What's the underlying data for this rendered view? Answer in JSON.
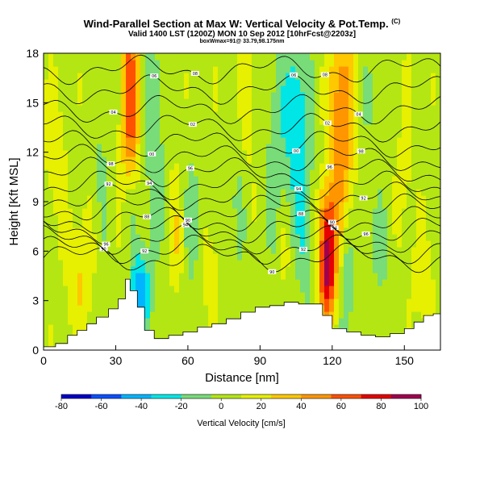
{
  "header": {
    "title": "Wind-Parallel Section at Max W: Vertical Velocity & Pot.Temp.",
    "title_mark": "(C)",
    "subtitle": "Valid 1400 LST (1200Z) MON 10 Sep 2012 [10hrFcst@2203z]",
    "info": "boxWmax=91@ 33.79,98.175nm"
  },
  "chart_data": {
    "type": "heatmap",
    "title": "Wind-Parallel Section at Max W: Vertical Velocity & Pot.Temp.",
    "xlabel": "Distance [nm]",
    "ylabel": "Height [Kft MSL]",
    "xlim": [
      0,
      165
    ],
    "ylim": [
      0,
      18
    ],
    "x_ticks": [
      0,
      30,
      60,
      90,
      120,
      150
    ],
    "y_ticks": [
      0,
      3,
      6,
      9,
      12,
      15,
      18
    ],
    "grid": false,
    "colorbar": {
      "title": "Vertical Velocity [cm/s]",
      "ticks": [
        -80,
        -60,
        -40,
        -20,
        0,
        20,
        40,
        60,
        80,
        100
      ],
      "range": [
        -80,
        100
      ],
      "colors": [
        "#0000c8",
        "#0a50ff",
        "#00b4ff",
        "#00e6e6",
        "#78dc78",
        "#b4e614",
        "#e6f000",
        "#ffc800",
        "#ff9600",
        "#ff5000",
        "#e60000",
        "#a00050"
      ]
    },
    "background_level": 5,
    "velocity_features": [
      {
        "x": 15,
        "y": 4.5,
        "w": 22,
        "sx": 3.5,
        "sy": 2.5
      },
      {
        "x": 36,
        "y": 15,
        "w": 62,
        "sx": 2.5,
        "sy": 4.5
      },
      {
        "x": 36,
        "y": 9,
        "w": -25,
        "sx": 2.2,
        "sy": 2
      },
      {
        "x": 40,
        "y": 3.5,
        "w": -55,
        "sx": 2.8,
        "sy": 1.8
      },
      {
        "x": 46,
        "y": 13,
        "w": -22,
        "sx": 3,
        "sy": 5
      },
      {
        "x": 55,
        "y": 7,
        "w": 18,
        "sx": 2,
        "sy": 2.5
      },
      {
        "x": 62,
        "y": 8,
        "w": -20,
        "sx": 2,
        "sy": 3
      },
      {
        "x": 70,
        "y": 4,
        "w": 20,
        "sx": 2,
        "sy": 2
      },
      {
        "x": 80,
        "y": 9,
        "w": -12,
        "sx": 3,
        "sy": 4
      },
      {
        "x": 85,
        "y": 15,
        "w": 14,
        "sx": 3,
        "sy": 3
      },
      {
        "x": 96,
        "y": 12,
        "w": -16,
        "sx": 3,
        "sy": 5
      },
      {
        "x": 105,
        "y": 14,
        "w": -38,
        "sx": 4,
        "sy": 4
      },
      {
        "x": 109,
        "y": 7,
        "w": -22,
        "sx": 3,
        "sy": 3
      },
      {
        "x": 118,
        "y": 5,
        "w": 90,
        "sx": 2.6,
        "sy": 2.2
      },
      {
        "x": 118,
        "y": 8.5,
        "w": 30,
        "sx": 3,
        "sy": 1.5
      },
      {
        "x": 124,
        "y": 14,
        "w": 52,
        "sx": 3.5,
        "sy": 4.5
      },
      {
        "x": 126,
        "y": 4,
        "w": -25,
        "sx": 2,
        "sy": 3
      },
      {
        "x": 140,
        "y": 6,
        "w": -12,
        "sx": 4,
        "sy": 3
      },
      {
        "x": 135,
        "y": 15,
        "w": -8,
        "sx": 4,
        "sy": 3
      },
      {
        "x": 5,
        "y": 12,
        "w": 15,
        "sx": 3,
        "sy": 3
      },
      {
        "x": 24,
        "y": 11,
        "w": -12,
        "sx": 2,
        "sy": 4
      },
      {
        "x": 100,
        "y": 6,
        "w": 12,
        "sx": 2,
        "sy": 2
      },
      {
        "x": 150,
        "y": 10,
        "w": 10,
        "sx": 3,
        "sy": 4
      },
      {
        "x": 158,
        "y": 4,
        "w": 14,
        "sx": 3,
        "sy": 2
      }
    ],
    "terrain": [
      [
        0,
        0.2
      ],
      [
        5,
        0.4
      ],
      [
        10,
        0.9
      ],
      [
        14,
        1.2
      ],
      [
        18,
        1.6
      ],
      [
        22,
        2.0
      ],
      [
        27,
        2.5
      ],
      [
        31,
        3.1
      ],
      [
        34,
        4.3
      ],
      [
        36,
        3.6
      ],
      [
        39,
        2.6
      ],
      [
        42,
        1.2
      ],
      [
        46,
        0.7
      ],
      [
        52,
        0.9
      ],
      [
        58,
        1.1
      ],
      [
        64,
        1.4
      ],
      [
        70,
        1.6
      ],
      [
        76,
        1.9
      ],
      [
        82,
        2.3
      ],
      [
        88,
        2.6
      ],
      [
        94,
        2.7
      ],
      [
        100,
        2.9
      ],
      [
        106,
        2.8
      ],
      [
        112,
        2.8
      ],
      [
        116,
        2.1
      ],
      [
        120,
        1.3
      ],
      [
        126,
        1.1
      ],
      [
        132,
        0.9
      ],
      [
        138,
        0.8
      ],
      [
        144,
        1.0
      ],
      [
        150,
        1.3
      ],
      [
        154,
        1.7
      ],
      [
        158,
        2.1
      ],
      [
        162,
        2.2
      ],
      [
        165,
        2.3
      ]
    ],
    "theta_contours": [
      {
        "base": 5.6,
        "label": "90"
      },
      {
        "base": 6.1,
        "label": "92"
      },
      {
        "base": 6.7,
        "label": "94"
      },
      {
        "base": 7.3,
        "label": "96"
      },
      {
        "base": 7.9,
        "label": "88"
      },
      {
        "base": 8.6,
        "label": "90"
      },
      {
        "base": 9.3,
        "label": "92"
      },
      {
        "base": 10.0,
        "label": "94"
      },
      {
        "base": 10.8,
        "label": "96"
      },
      {
        "base": 11.6,
        "label": "98"
      },
      {
        "base": 12.5,
        "label": "00"
      },
      {
        "base": 13.5,
        "label": "02"
      },
      {
        "base": 14.6,
        "label": "04"
      },
      {
        "base": 15.8,
        "label": "06"
      },
      {
        "base": 17.0,
        "label": "08"
      }
    ]
  }
}
